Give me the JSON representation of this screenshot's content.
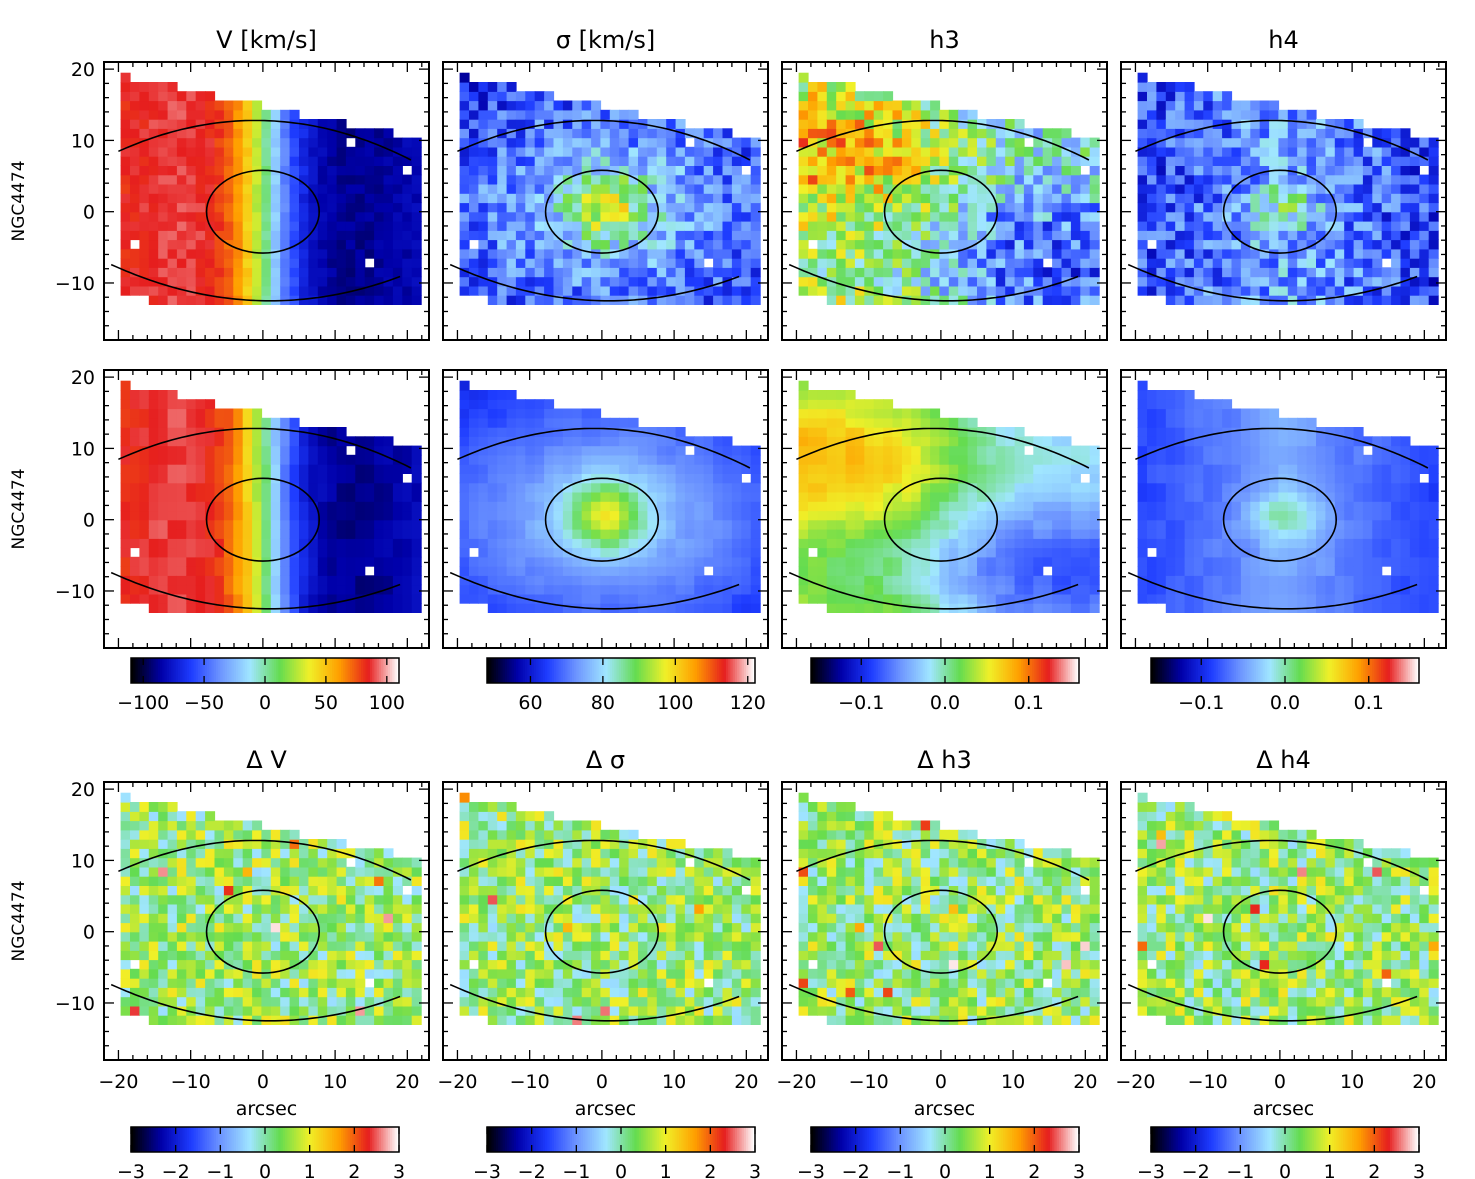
{
  "figure": {
    "galaxy": "NGC4474",
    "xlabel": "arcsec",
    "xticks": [
      "−20",
      "−10",
      "0",
      "10",
      "20"
    ],
    "yticks": [
      "20",
      "10",
      "0",
      "−10"
    ],
    "colormap": [
      "#000000",
      "#0000aa",
      "#1e3cff",
      "#6e96ff",
      "#a0e6ff",
      "#64dc50",
      "#f0f028",
      "#ffa000",
      "#e61e1e",
      "#ffffff"
    ]
  },
  "chart_data": [
    {
      "type": "heatmap",
      "row": 1,
      "col": 1,
      "title": "V [km/s]",
      "ylabel": "NGC4474",
      "field": "V",
      "xlim": [
        -22,
        23
      ],
      "ylim": [
        -18,
        21
      ]
    },
    {
      "type": "heatmap",
      "row": 1,
      "col": 2,
      "title": "σ [km/s]",
      "ylabel": "",
      "field": "sigma",
      "xlim": [
        -22,
        23
      ],
      "ylim": [
        -18,
        21
      ]
    },
    {
      "type": "heatmap",
      "row": 1,
      "col": 3,
      "title": "h3",
      "ylabel": "",
      "field": "h3",
      "xlim": [
        -22,
        23
      ],
      "ylim": [
        -18,
        21
      ]
    },
    {
      "type": "heatmap",
      "row": 1,
      "col": 4,
      "title": "h4",
      "ylabel": "",
      "field": "h4",
      "xlim": [
        -22,
        23
      ],
      "ylim": [
        -18,
        21
      ]
    },
    {
      "type": "heatmap",
      "row": 2,
      "col": 1,
      "title": "",
      "ylabel": "NGC4474",
      "field": "V",
      "xlim": [
        -22,
        23
      ],
      "ylim": [
        -18,
        21
      ]
    },
    {
      "type": "heatmap",
      "row": 2,
      "col": 2,
      "title": "",
      "ylabel": "",
      "field": "sigma",
      "xlim": [
        -22,
        23
      ],
      "ylim": [
        -18,
        21
      ]
    },
    {
      "type": "heatmap",
      "row": 2,
      "col": 3,
      "title": "",
      "ylabel": "",
      "field": "h3",
      "xlim": [
        -22,
        23
      ],
      "ylim": [
        -18,
        21
      ]
    },
    {
      "type": "heatmap",
      "row": 2,
      "col": 4,
      "title": "",
      "ylabel": "",
      "field": "h4",
      "xlim": [
        -22,
        23
      ],
      "ylim": [
        -18,
        21
      ]
    },
    {
      "type": "heatmap",
      "row": 3,
      "col": 1,
      "title": "Δ V",
      "ylabel": "NGC4474",
      "field": "dV",
      "xlim": [
        -22,
        23
      ],
      "ylim": [
        -18,
        21
      ]
    },
    {
      "type": "heatmap",
      "row": 3,
      "col": 2,
      "title": "Δ σ",
      "ylabel": "",
      "field": "dsigma",
      "xlim": [
        -22,
        23
      ],
      "ylim": [
        -18,
        21
      ]
    },
    {
      "type": "heatmap",
      "row": 3,
      "col": 3,
      "title": "Δ h3",
      "ylabel": "",
      "field": "dh3",
      "xlim": [
        -22,
        23
      ],
      "ylim": [
        -18,
        21
      ]
    },
    {
      "type": "heatmap",
      "row": 3,
      "col": 4,
      "title": "Δ h4",
      "ylabel": "",
      "field": "dh4",
      "xlim": [
        -22,
        23
      ],
      "ylim": [
        -18,
        21
      ]
    }
  ],
  "colorbars": [
    {
      "col": 1,
      "range": [
        -110,
        110
      ],
      "ticks": [
        "−100",
        "−50",
        "0",
        "50",
        "100"
      ]
    },
    {
      "col": 2,
      "range": [
        48,
        122
      ],
      "ticks": [
        "60",
        "80",
        "100",
        "120"
      ]
    },
    {
      "col": 3,
      "range": [
        -0.16,
        0.16
      ],
      "ticks": [
        "−0.1",
        "0.0",
        "0.1"
      ]
    },
    {
      "col": 4,
      "range": [
        -0.16,
        0.16
      ],
      "ticks": [
        "−0.1",
        "0.0",
        "0.1"
      ]
    },
    {
      "col": 1,
      "range": [
        -3,
        3
      ],
      "ticks": [
        "−3",
        "−2",
        "−1",
        "0",
        "1",
        "2",
        "3"
      ]
    },
    {
      "col": 2,
      "range": [
        -3,
        3
      ],
      "ticks": [
        "−3",
        "−2",
        "−1",
        "0",
        "1",
        "2",
        "3"
      ]
    },
    {
      "col": 3,
      "range": [
        -3,
        3
      ],
      "ticks": [
        "−3",
        "−2",
        "−1",
        "0",
        "1",
        "2",
        "3"
      ]
    },
    {
      "col": 4,
      "range": [
        -3,
        3
      ],
      "ticks": [
        "−3",
        "−2",
        "−1",
        "0",
        "1",
        "2",
        "3"
      ]
    }
  ]
}
